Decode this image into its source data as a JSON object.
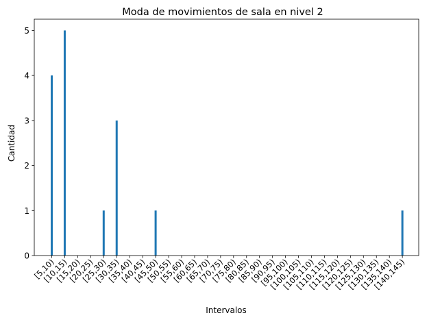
{
  "chart_data": {
    "type": "bar",
    "title": "Moda de movimientos de sala en nivel 2",
    "xlabel": "Intervalos",
    "ylabel": "Cantidad",
    "categories": [
      "[5,10)",
      "[10,15)",
      "[15,20)",
      "[20,25)",
      "[25,30)",
      "[30,35)",
      "[35,40)",
      "[40,45)",
      "[45,50)",
      "[50,55)",
      "[55,60)",
      "[60,65)",
      "[65,70)",
      "[70,75)",
      "[75,80)",
      "[80,85)",
      "[85,90)",
      "[90,95)",
      "[95,100)",
      "[100,105)",
      "[105,110)",
      "[110,115)",
      "[115,120)",
      "[120,125)",
      "[125,130)",
      "[130,135)",
      "[135,140)",
      "[140,145)"
    ],
    "values": [
      4,
      5,
      0,
      0,
      1,
      3,
      0,
      0,
      1,
      0,
      0,
      0,
      0,
      0,
      0,
      0,
      0,
      0,
      0,
      0,
      0,
      0,
      0,
      0,
      0,
      0,
      0,
      1
    ],
    "ylim": [
      0,
      5.25
    ],
    "yticks": [
      0,
      1,
      2,
      3,
      4,
      5
    ],
    "bar_color": "#1f77b4",
    "grid": false,
    "legend": false
  }
}
